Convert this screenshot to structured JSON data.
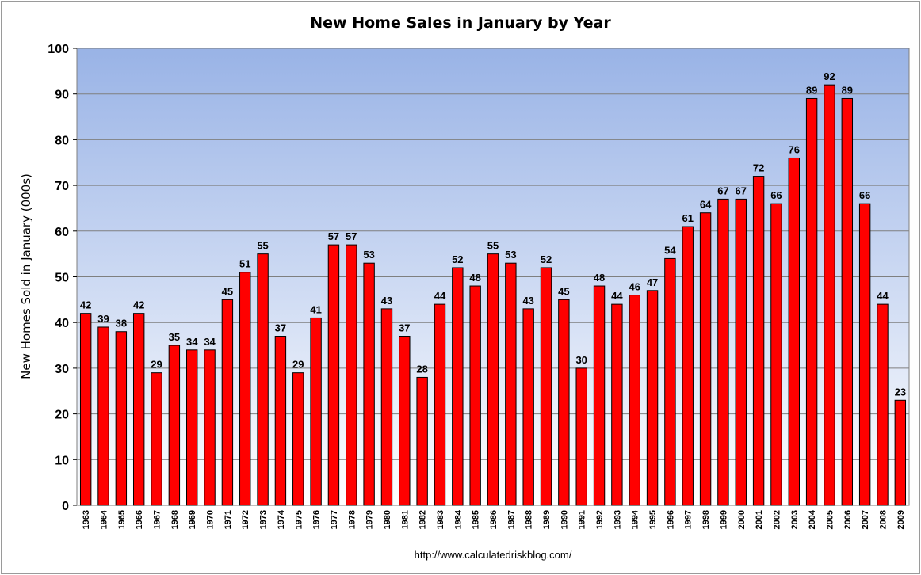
{
  "chart_data": {
    "type": "bar",
    "title": "New Home Sales in January by Year",
    "xlabel": "",
    "ylabel": "New Homes Sold in January (000s)",
    "ylim": [
      0,
      100
    ],
    "yticks": [
      0,
      10,
      20,
      30,
      40,
      50,
      60,
      70,
      80,
      90,
      100
    ],
    "grid": true,
    "legend": "none",
    "categories": [
      "1963",
      "1964",
      "1965",
      "1966",
      "1967",
      "1968",
      "1969",
      "1970",
      "1971",
      "1972",
      "1973",
      "1974",
      "1975",
      "1976",
      "1977",
      "1978",
      "1979",
      "1980",
      "1981",
      "1982",
      "1983",
      "1984",
      "1985",
      "1986",
      "1987",
      "1988",
      "1989",
      "1990",
      "1991",
      "1992",
      "1993",
      "1994",
      "1995",
      "1996",
      "1997",
      "1998",
      "1999",
      "2000",
      "2001",
      "2002",
      "2003",
      "2004",
      "2005",
      "2006",
      "2007",
      "2008",
      "2009"
    ],
    "values": [
      42,
      39,
      38,
      42,
      29,
      35,
      34,
      34,
      45,
      51,
      55,
      37,
      29,
      41,
      57,
      57,
      53,
      43,
      37,
      28,
      44,
      52,
      48,
      55,
      53,
      43,
      52,
      45,
      30,
      48,
      44,
      46,
      47,
      54,
      61,
      64,
      67,
      67,
      72,
      66,
      76,
      89,
      92,
      89,
      66,
      44,
      23
    ],
    "colors": {
      "bar_fill": "#ff0000",
      "bar_stroke": "#000000",
      "plot_bg_top": "#99b3e6",
      "plot_bg_bottom": "#ffffff",
      "gridline": "#7f7f7f"
    }
  },
  "source_text": "http://www.calculatedriskblog.com/"
}
